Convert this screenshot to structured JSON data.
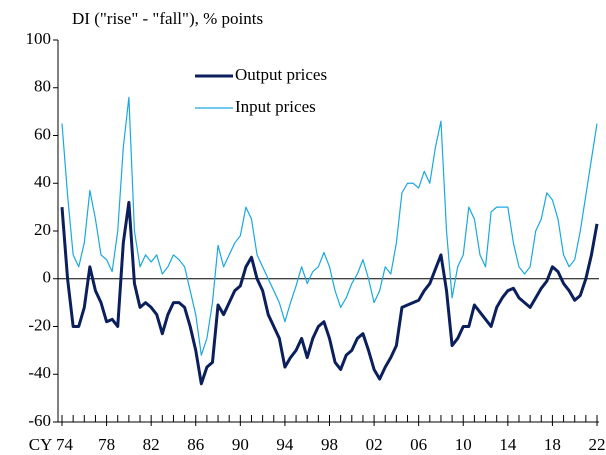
{
  "chart_data": {
    "type": "line",
    "title": "DI (\"rise\" - \"fall\"), % points",
    "x": [
      1974,
      1974.5,
      1975,
      1975.5,
      1976,
      1976.5,
      1977,
      1977.5,
      1978,
      1978.5,
      1979,
      1979.5,
      1980,
      1980.5,
      1981,
      1981.5,
      1982,
      1982.5,
      1983,
      1983.5,
      1984,
      1984.5,
      1985,
      1985.5,
      1986,
      1986.5,
      1987,
      1987.5,
      1988,
      1988.5,
      1989,
      1989.5,
      1990,
      1990.5,
      1991,
      1991.5,
      1992,
      1992.5,
      1993,
      1993.5,
      1994,
      1994.5,
      1995,
      1995.5,
      1996,
      1996.5,
      1997,
      1997.5,
      1998,
      1998.5,
      1999,
      1999.5,
      2000,
      2000.5,
      2001,
      2001.5,
      2002,
      2002.5,
      2003,
      2003.5,
      2004,
      2004.5,
      2005,
      2005.5,
      2006,
      2006.5,
      2007,
      2007.5,
      2008,
      2008.5,
      2009,
      2009.5,
      2010,
      2010.5,
      2011,
      2011.5,
      2012,
      2012.5,
      2013,
      2013.5,
      2014,
      2014.5,
      2015,
      2015.5,
      2016,
      2016.5,
      2017,
      2017.5,
      2018,
      2018.5,
      2019,
      2019.5,
      2020,
      2020.5,
      2021,
      2021.5,
      2022
    ],
    "series": [
      {
        "name": "Output prices",
        "color": "#0b1f5c",
        "width": 3,
        "values": [
          30,
          0,
          -20,
          -20,
          -12,
          5,
          -5,
          -10,
          -18,
          -17,
          -20,
          15,
          32,
          -2,
          -12,
          -10,
          -12,
          -15,
          -23,
          -15,
          -10,
          -10,
          -12,
          -20,
          -30,
          -44,
          -37,
          -35,
          -11,
          -15,
          -10,
          -5,
          -3,
          5,
          9,
          0,
          -5,
          -15,
          -20,
          -25,
          -37,
          -33,
          -30,
          -25,
          -33,
          -25,
          -20,
          -18,
          -25,
          -35,
          -38,
          -32,
          -30,
          -25,
          -23,
          -30,
          -38,
          -42,
          -37,
          -33,
          -28,
          -12,
          -11,
          -10,
          -9,
          -5,
          -2,
          4,
          10,
          -5,
          -28,
          -25,
          -20,
          -20,
          -11,
          -14,
          -17,
          -20,
          -12,
          -8,
          -5,
          -4,
          -8,
          -10,
          -12,
          -8,
          -4,
          -1,
          5,
          3,
          -2,
          -5,
          -9,
          -7,
          0,
          10,
          23
        ]
      },
      {
        "name": "Input prices",
        "color": "#1ba8e0",
        "width": 1.2,
        "values": [
          65,
          35,
          10,
          5,
          15,
          37,
          25,
          10,
          8,
          3,
          20,
          55,
          76,
          20,
          5,
          10,
          7,
          10,
          2,
          5,
          10,
          8,
          5,
          -5,
          -15,
          -32,
          -25,
          -10,
          14,
          5,
          10,
          15,
          18,
          30,
          25,
          10,
          5,
          0,
          -5,
          -10,
          -18,
          -10,
          -3,
          5,
          -2,
          3,
          5,
          11,
          5,
          -5,
          -12,
          -8,
          -2,
          2,
          8,
          0,
          -10,
          -5,
          5,
          2,
          15,
          36,
          40,
          40,
          38,
          45,
          40,
          55,
          66,
          20,
          -8,
          5,
          10,
          30,
          25,
          10,
          5,
          28,
          30,
          30,
          30,
          15,
          5,
          2,
          5,
          20,
          25,
          36,
          33,
          25,
          10,
          5,
          8,
          20,
          35,
          50,
          65
        ]
      }
    ],
    "xlim": [
      1974,
      2022
    ],
    "xticks": [
      {
        "value": 1974,
        "label": "CY 74"
      },
      {
        "value": 1978,
        "label": "78"
      },
      {
        "value": 1982,
        "label": "82"
      },
      {
        "value": 1986,
        "label": "86"
      },
      {
        "value": 1990,
        "label": "90"
      },
      {
        "value": 1994,
        "label": "94"
      },
      {
        "value": 1998,
        "label": "98"
      },
      {
        "value": 2002,
        "label": "02"
      },
      {
        "value": 2006,
        "label": "06"
      },
      {
        "value": 2010,
        "label": "10"
      },
      {
        "value": 2014,
        "label": "14"
      },
      {
        "value": 2018,
        "label": "18"
      },
      {
        "value": 2022,
        "label": "22"
      }
    ],
    "xminorticks": [
      1974,
      1975,
      1976,
      1977,
      1978,
      1979,
      1980,
      1981,
      1982,
      1983,
      1984,
      1985,
      1986,
      1987,
      1988,
      1989,
      1990,
      1991,
      1992,
      1993,
      1994,
      1995,
      1996,
      1997,
      1998,
      1999,
      2000,
      2001,
      2002,
      2003,
      2004,
      2005,
      2006,
      2007,
      2008,
      2009,
      2010,
      2011,
      2012,
      2013,
      2014,
      2015,
      2016,
      2017,
      2018,
      2019,
      2020,
      2021,
      2022
    ],
    "ylim": [
      -60,
      100
    ],
    "yticks": [
      -60,
      -40,
      -20,
      0,
      20,
      40,
      60,
      80,
      100
    ],
    "zero_line": true,
    "legend": "top"
  }
}
